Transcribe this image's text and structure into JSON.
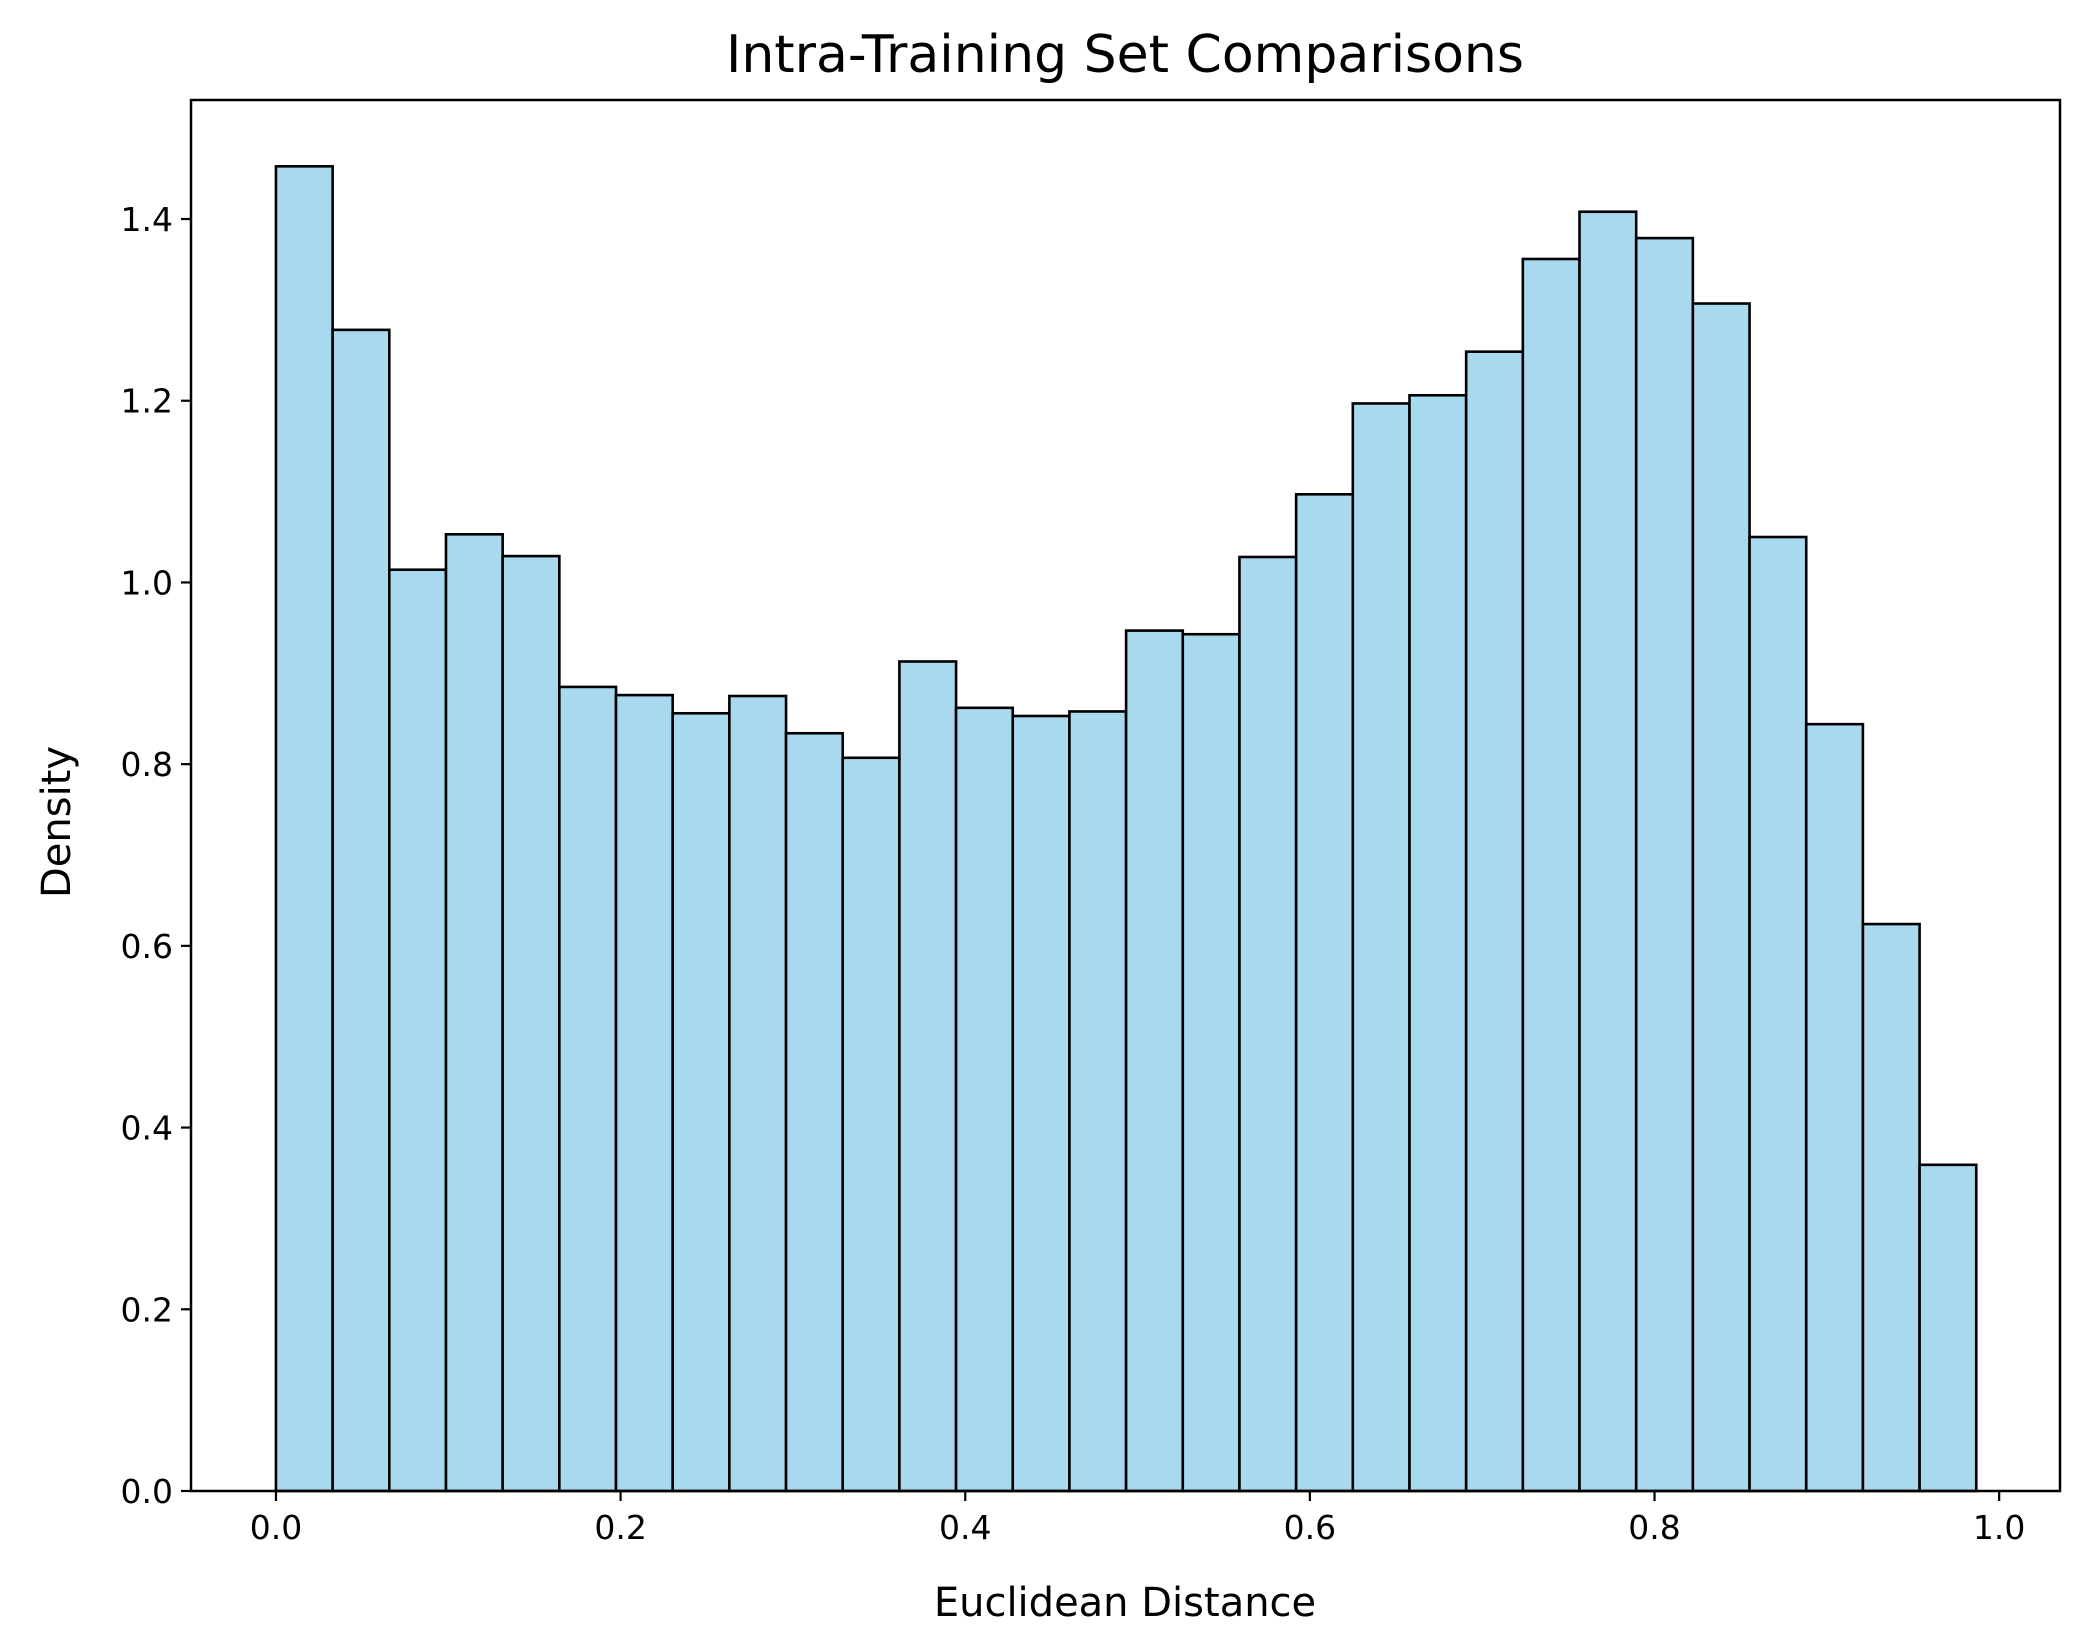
{
  "chart_data": {
    "type": "bar",
    "subtype": "histogram",
    "title": "Intra-Training Set Comparisons",
    "xlabel": "Euclidean Distance",
    "ylabel": "Density",
    "xlim": [
      -0.0493,
      1.0353
    ],
    "ylim": [
      0,
      1.531
    ],
    "x_ticks": [
      0.0,
      0.2,
      0.4,
      0.6,
      0.8,
      1.0
    ],
    "x_tick_labels": [
      "0.0",
      "0.2",
      "0.4",
      "0.6",
      "0.8",
      "1.0"
    ],
    "y_ticks": [
      0.0,
      0.2,
      0.4,
      0.6,
      0.8,
      1.0,
      1.2,
      1.4
    ],
    "y_tick_labels": [
      "0.0",
      "0.2",
      "0.4",
      "0.6",
      "0.8",
      "1.0",
      "1.2",
      "1.4"
    ],
    "bin_start": 0.0,
    "bin_width": 0.03289,
    "bin_count": 30,
    "values": [
      1.458,
      1.278,
      1.014,
      1.053,
      1.029,
      0.885,
      0.876,
      0.856,
      0.875,
      0.834,
      0.807,
      0.913,
      0.862,
      0.853,
      0.858,
      0.947,
      0.943,
      1.028,
      1.097,
      1.197,
      1.206,
      1.254,
      1.356,
      1.408,
      1.379,
      1.307,
      1.05,
      0.844,
      0.624,
      0.359
    ],
    "grid": false,
    "legend": "none",
    "colors": {
      "bar_fill": "#a8d9ef",
      "bar_edge": "#000000"
    }
  }
}
